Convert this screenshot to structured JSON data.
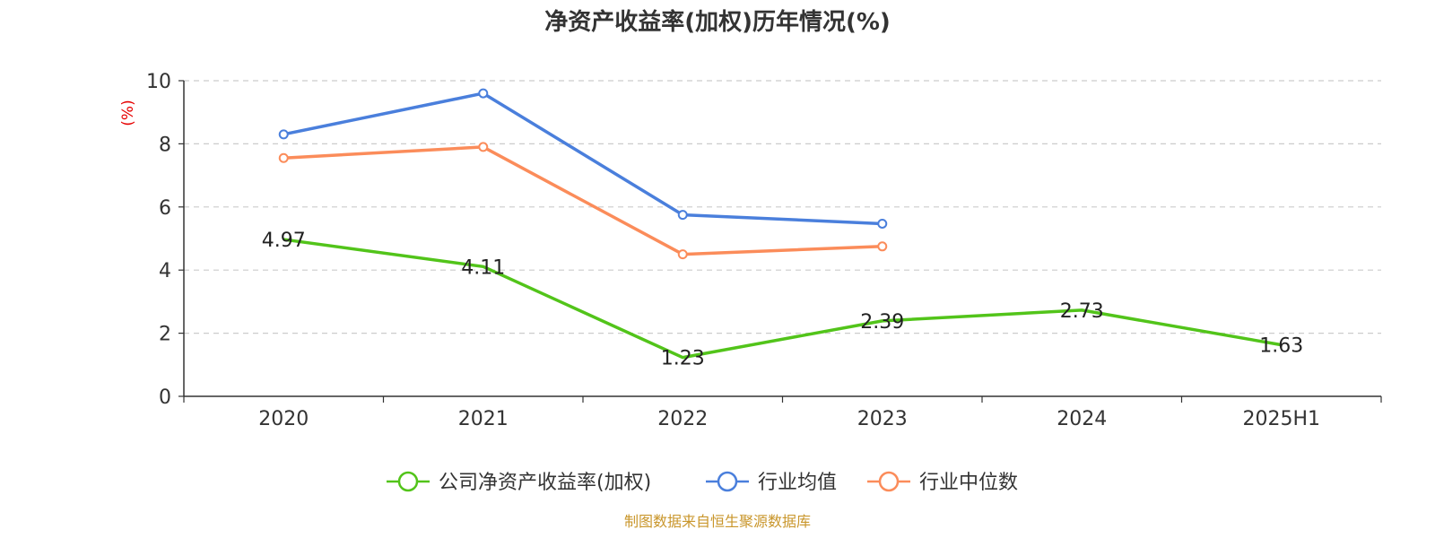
{
  "chart_data": {
    "type": "line",
    "title": "净资产收益率(加权)历年情况(%)",
    "ylabel": "(%)",
    "xlabel": "",
    "categories": [
      "2020",
      "2021",
      "2022",
      "2023",
      "2024",
      "2025H1"
    ],
    "ylim": [
      0,
      10
    ],
    "yticks": [
      0,
      2,
      4,
      6,
      8,
      10
    ],
    "grid": true,
    "legend_position": "bottom",
    "series": [
      {
        "name": "公司净资产收益率(加权)",
        "color": "#52c41a",
        "show_labels": true,
        "values": [
          4.97,
          4.11,
          1.23,
          2.39,
          2.73,
          1.63
        ]
      },
      {
        "name": "行业均值",
        "color": "#4a7fdc",
        "show_labels": false,
        "values": [
          8.3,
          9.6,
          5.75,
          5.47,
          null,
          null
        ]
      },
      {
        "name": "行业中位数",
        "color": "#fb8c5a",
        "show_labels": false,
        "values": [
          7.55,
          7.9,
          4.5,
          4.75,
          null,
          null
        ]
      }
    ]
  },
  "footer": "制图数据来自恒生聚源数据库",
  "colors": {
    "axis": "#333333",
    "grid": "#cccccc",
    "ylabel": "#e60000",
    "footer": "#c9962b"
  }
}
